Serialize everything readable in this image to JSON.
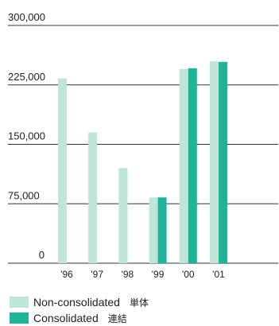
{
  "chart_data": {
    "type": "bar",
    "categories": [
      "'96",
      "'97",
      "'98",
      "'99",
      "'00",
      "'01"
    ],
    "series": [
      {
        "name": "Non-consolidated",
        "name_jp": "単体",
        "color": "#bfe4da",
        "values": [
          233000,
          165000,
          120000,
          83000,
          245000,
          255000
        ]
      },
      {
        "name": "Consolidated",
        "name_jp": "連結",
        "color": "#1fb496",
        "values": [
          null,
          null,
          null,
          83000,
          246000,
          254000
        ]
      }
    ],
    "yticks": [
      0,
      75000,
      150000,
      225000,
      300000
    ],
    "ytick_labels": [
      "0",
      "75,000",
      "150,000",
      "225,000",
      "300,000"
    ],
    "ylim": [
      0,
      300000
    ],
    "grid": true,
    "legend_position": "bottom-left"
  }
}
